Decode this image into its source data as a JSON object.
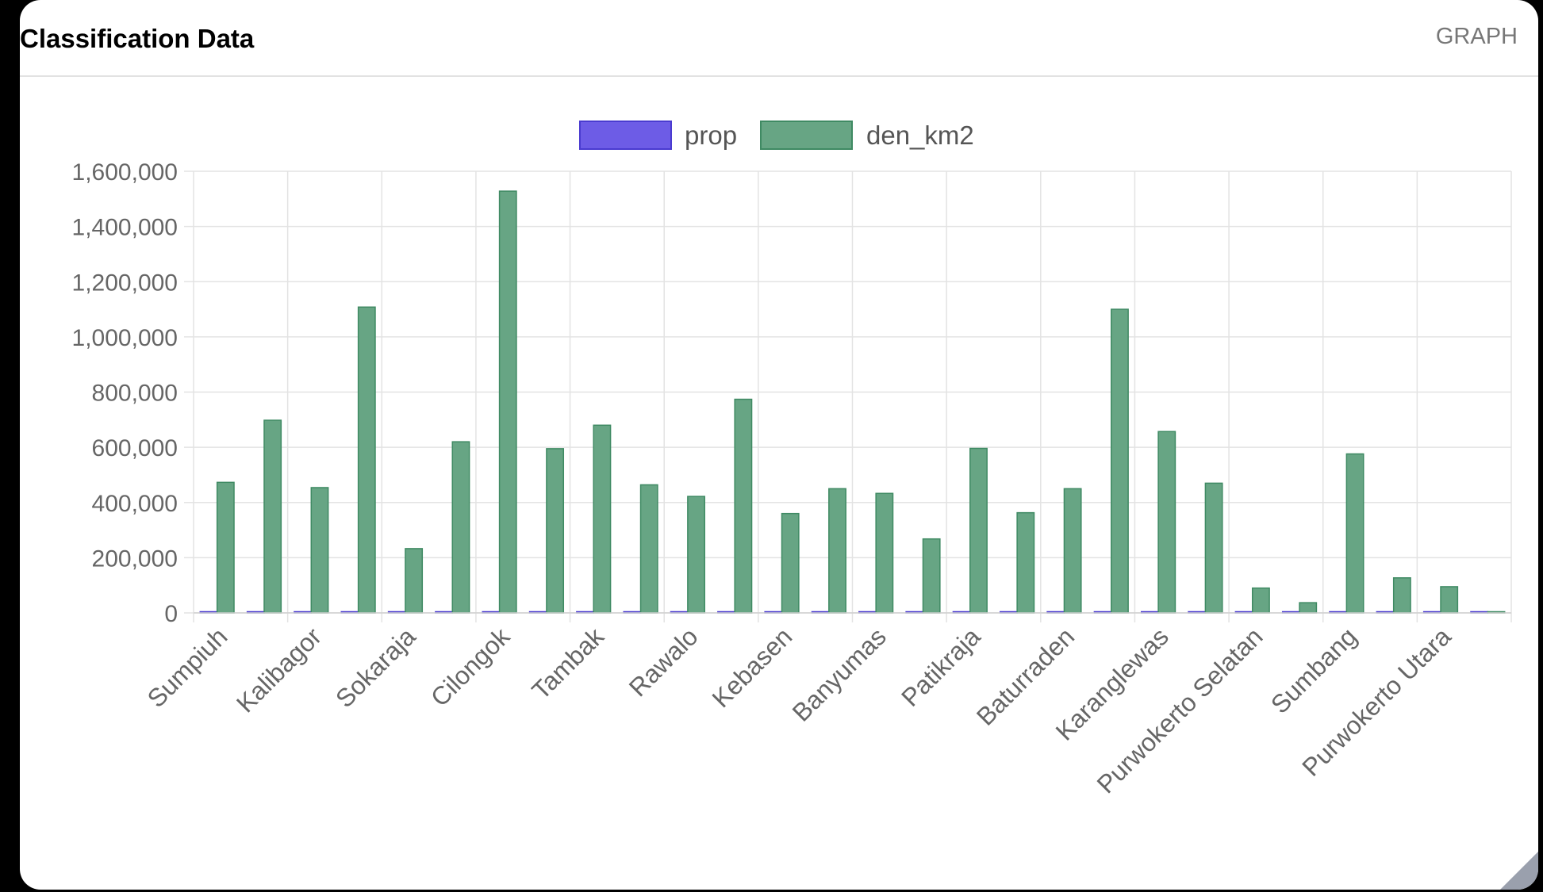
{
  "panel": {
    "title": "Classification Data",
    "link_label": "GRAPH"
  },
  "chart_data": {
    "type": "bar",
    "title": "",
    "xlabel": "",
    "ylabel": "",
    "ylim": [
      0,
      1600000
    ],
    "yticks": [
      0,
      200000,
      400000,
      600000,
      800000,
      1000000,
      1200000,
      1400000,
      1600000
    ],
    "y_tick_labels": [
      "0",
      "200,000",
      "400,000",
      "600,000",
      "800,000",
      "1,000,000",
      "1,200,000",
      "1,400,000",
      "1,600,000"
    ],
    "grid": true,
    "legend_position": "top",
    "categories": [
      "Sumpiuh",
      "",
      "Kalibagor",
      "",
      "Sokaraja",
      "",
      "Cilongok",
      "",
      "Tambak",
      "",
      "Rawalo",
      "",
      "Kebasen",
      "",
      "Banyumas",
      "",
      "Patikraja",
      "",
      "Baturraden",
      "",
      "Karanglewas",
      "",
      "Purwokerto Selatan",
      "",
      "Sumbang",
      "",
      "Purwokerto Utara",
      ""
    ],
    "x_tick_labels": [
      "Sumpiuh",
      "Kalibagor",
      "Sokaraja",
      "Cilongok",
      "Tambak",
      "Rawalo",
      "Kebasen",
      "Banyumas",
      "Patikraja",
      "Baturraden",
      "Karanglewas",
      "Purwokerto Selatan",
      "Sumbang",
      "Purwokerto Utara"
    ],
    "series": [
      {
        "name": "prop",
        "color": "#6d5ce6",
        "border": "#4a3bd0",
        "values": [
          0,
          0,
          0,
          0,
          0,
          0,
          0,
          0,
          0,
          0,
          0,
          0,
          0,
          0,
          0,
          0,
          0,
          0,
          0,
          0,
          0,
          0,
          0,
          0,
          0,
          0,
          0,
          0
        ]
      },
      {
        "name": "den_km2",
        "color": "#67a584",
        "border": "#3f8a63",
        "values": [
          473000,
          698000,
          454000,
          1108000,
          233000,
          620000,
          1528000,
          595000,
          680000,
          464000,
          422000,
          774000,
          360000,
          450000,
          433000,
          268000,
          596000,
          363000,
          450000,
          1100000,
          657000,
          470000,
          90000,
          37000,
          576000,
          127000,
          95000,
          0
        ]
      }
    ]
  }
}
